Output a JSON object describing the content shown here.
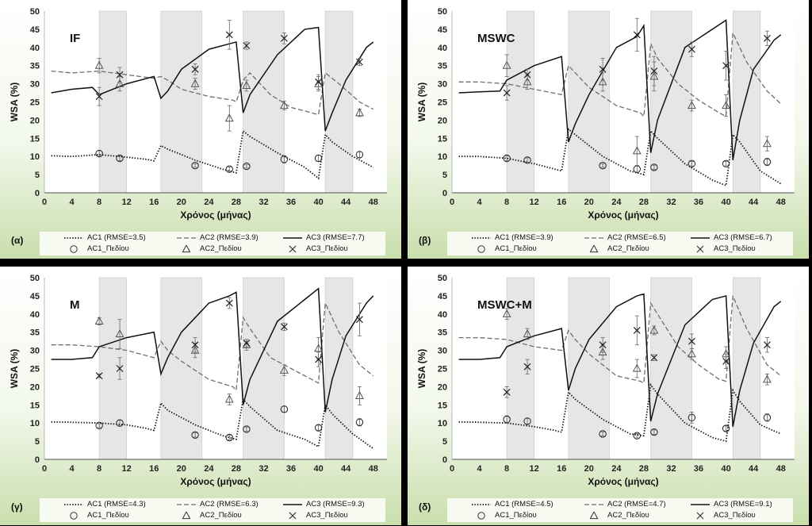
{
  "axis": {
    "ylabel": "WSA (%)",
    "xlabel": "Χρόνος (μήνας)",
    "xticks": [
      0,
      4,
      8,
      12,
      16,
      20,
      24,
      28,
      32,
      36,
      40,
      44,
      48
    ],
    "yticks": [
      0,
      5,
      10,
      15,
      20,
      25,
      30,
      35,
      40,
      45,
      50
    ]
  },
  "colors": {
    "ac1": "#111111",
    "ac2": "#6e6e6e",
    "ac3": "#111111",
    "shade": "#e6e6e6"
  },
  "chart_data": [
    {
      "type": "line",
      "panel_label": "(α)",
      "title": "IF",
      "xlim": [
        0,
        50
      ],
      "ylim": [
        0,
        50
      ],
      "shaded_x": [
        [
          8,
          12
        ],
        [
          17,
          23
        ],
        [
          29,
          35
        ],
        [
          41,
          45
        ]
      ],
      "legend": [
        "AC1 (RMSE=3.5)",
        "AC2 (RMSE=3.9)",
        "AC3 (RMSE=7.7)",
        "AC1_Πεδίου",
        "AC2_Πεδίου",
        "AC3_Πεδίου"
      ],
      "series": [
        {
          "name": "AC1 (RMSE=3.5)",
          "style": "dotted",
          "x": [
            1,
            4,
            8,
            12,
            15,
            16,
            17,
            18,
            22,
            26,
            28,
            29,
            30,
            34,
            38,
            40,
            41,
            42,
            45,
            48
          ],
          "y": [
            10.2,
            10,
            10.5,
            9.8,
            9.2,
            8.8,
            13,
            12,
            9,
            6.5,
            5.5,
            17,
            15.5,
            11,
            7,
            4,
            16,
            14,
            10,
            7
          ]
        },
        {
          "name": "AC2 (RMSE=3.9)",
          "style": "dashed",
          "x": [
            1,
            4,
            8,
            12,
            16,
            17,
            18,
            20,
            24,
            27.5,
            28,
            29,
            30,
            33,
            36,
            39,
            40,
            41,
            43,
            46,
            48
          ],
          "y": [
            33.5,
            33,
            33.5,
            32.5,
            31.5,
            32,
            31,
            28.5,
            26.5,
            25.5,
            25,
            31,
            33,
            27,
            23.5,
            22,
            21.5,
            33,
            30,
            25,
            23
          ]
        },
        {
          "name": "AC3 (RMSE=7.7)",
          "style": "solid",
          "x": [
            1,
            4,
            7,
            8,
            12,
            16,
            17,
            18,
            20,
            24,
            27,
            28,
            29,
            30,
            34,
            38,
            40,
            41,
            42,
            44,
            47,
            48
          ],
          "y": [
            27.5,
            28.5,
            29,
            27,
            30,
            32,
            26,
            28,
            34,
            39.5,
            41,
            41.5,
            22,
            27,
            38,
            45,
            45.5,
            17,
            22,
            31,
            40,
            41.5
          ]
        }
      ],
      "observed": [
        {
          "name": "AC1_Πεδίου",
          "marker": "circle",
          "x": [
            8,
            11,
            22,
            27,
            29.5,
            35,
            40,
            46
          ],
          "y": [
            10.8,
            9.5,
            7.5,
            6.5,
            7.3,
            9.2,
            9.5,
            10.5
          ],
          "err": [
            0.8,
            0.7,
            0.5,
            0.6,
            0.5,
            1,
            0.8,
            0.8
          ]
        },
        {
          "name": "AC2_Πεδίου",
          "marker": "triangle",
          "x": [
            8,
            11,
            22,
            27,
            29.5,
            35,
            40,
            46
          ],
          "y": [
            35,
            30,
            30,
            20.5,
            29.5,
            24,
            30,
            22
          ],
          "err": [
            2,
            2,
            1.5,
            3.5,
            1.5,
            1.2,
            2,
            1
          ]
        },
        {
          "name": "AC3_Πεδίου",
          "marker": "cross",
          "x": [
            8,
            11,
            22,
            27,
            29.5,
            35,
            40,
            46
          ],
          "y": [
            26.5,
            32.5,
            34,
            43.5,
            40.5,
            42.5,
            30.5,
            36
          ],
          "err": [
            2.5,
            2,
            1.5,
            4,
            1,
            1.5,
            2,
            1
          ]
        }
      ]
    },
    {
      "type": "line",
      "panel_label": "(β)",
      "title": "MSWC",
      "xlim": [
        0,
        50
      ],
      "ylim": [
        0,
        50
      ],
      "shaded_x": [
        [
          8,
          12
        ],
        [
          17,
          23
        ],
        [
          29,
          35
        ],
        [
          41,
          45
        ]
      ],
      "legend": [
        "AC1 (RMSE=3.9)",
        "AC2 (RMSE=6.5)",
        "AC3 (RMSE=6.7)",
        "AC1_Πεδίου",
        "AC2_Πεδίου",
        "AC3_Πεδίου"
      ],
      "series": [
        {
          "name": "AC1 (RMSE=3.9)",
          "style": "dotted",
          "x": [
            1,
            4,
            8,
            12,
            15,
            16,
            17,
            18,
            22,
            26,
            28,
            29,
            30,
            34,
            38,
            40,
            41,
            42,
            45,
            48
          ],
          "y": [
            10,
            10,
            9.5,
            8,
            6.5,
            6,
            17.5,
            16,
            10,
            6,
            5,
            17,
            15,
            8,
            3.5,
            2,
            16,
            14,
            6,
            2.5
          ]
        },
        {
          "name": "AC2 (RMSE=6.5)",
          "style": "dashed",
          "x": [
            1,
            4,
            8,
            12,
            16,
            17,
            18,
            20,
            24,
            27.5,
            28,
            29,
            30,
            33,
            36,
            39,
            40,
            41,
            43,
            46,
            48
          ],
          "y": [
            30.5,
            30.5,
            30,
            28.5,
            27,
            35,
            33,
            29,
            24,
            22,
            21,
            41,
            37,
            30,
            25.5,
            22,
            21,
            44,
            36,
            28,
            24.5
          ]
        },
        {
          "name": "AC3 (RMSE=6.7)",
          "style": "solid",
          "x": [
            1,
            4,
            7,
            8,
            12,
            16,
            17,
            18,
            20,
            24,
            27,
            28,
            29,
            30,
            34,
            38,
            40,
            41,
            42,
            44,
            47,
            48
          ],
          "y": [
            27.5,
            27.8,
            28,
            31,
            35,
            37.5,
            14,
            19,
            27,
            40,
            43,
            46,
            11,
            20,
            40,
            45,
            47.5,
            9,
            20,
            34,
            42,
            43.5
          ]
        }
      ],
      "observed": [
        {
          "name": "AC1_Πεδίου",
          "marker": "circle",
          "x": [
            8,
            11,
            22,
            27,
            29.5,
            35,
            40,
            46
          ],
          "y": [
            9.5,
            9,
            7.5,
            6.5,
            7,
            8,
            8,
            8.5
          ],
          "err": [
            0.7,
            0.6,
            0.5,
            1,
            0.6,
            0.6,
            0.6,
            1
          ]
        },
        {
          "name": "AC2_Πεδίου",
          "marker": "triangle",
          "x": [
            8,
            11,
            22,
            27,
            29.5,
            35,
            40,
            46
          ],
          "y": [
            35,
            30.5,
            30.5,
            11.5,
            32,
            24,
            24,
            13.5
          ],
          "err": [
            3,
            2,
            2.5,
            4,
            4,
            1.5,
            3,
            2
          ]
        },
        {
          "name": "AC3_Πεδίου",
          "marker": "cross",
          "x": [
            8,
            11,
            22,
            27,
            29.5,
            35,
            40,
            46
          ],
          "y": [
            27.5,
            32.5,
            34,
            43.5,
            33.5,
            39.5,
            35,
            42.5
          ],
          "err": [
            2,
            1.5,
            3,
            4.5,
            4,
            2,
            4,
            2
          ]
        }
      ]
    },
    {
      "type": "line",
      "panel_label": "(γ)",
      "title": "M",
      "xlim": [
        0,
        50
      ],
      "ylim": [
        0,
        50
      ],
      "shaded_x": [
        [
          8,
          12
        ],
        [
          17,
          23
        ],
        [
          29,
          35
        ],
        [
          41,
          45
        ]
      ],
      "legend": [
        "AC1 (RMSE=4.3)",
        "AC2 (RMSE=6.3)",
        "AC3 (RMSE=9.3)",
        "AC1_Πεδίου",
        "AC2_Πεδίου",
        "AC3_Πεδίου"
      ],
      "series": [
        {
          "name": "AC1 (RMSE=4.3)",
          "style": "dotted",
          "x": [
            1,
            4,
            8,
            12,
            15,
            16,
            17,
            18,
            22,
            26,
            28,
            29,
            30,
            34,
            38,
            40,
            41,
            42,
            45,
            48
          ],
          "y": [
            10.3,
            10.2,
            10,
            9.5,
            8.5,
            8,
            15.5,
            13.5,
            9.5,
            6.5,
            5.5,
            16.5,
            14.5,
            8,
            5.5,
            3.5,
            15,
            12.5,
            7,
            3
          ]
        },
        {
          "name": "AC2 (RMSE=6.3)",
          "style": "dashed",
          "x": [
            1,
            4,
            8,
            12,
            16,
            17,
            18,
            20,
            24,
            27.5,
            28,
            29,
            30,
            33,
            36,
            39,
            40,
            41,
            43,
            46,
            48
          ],
          "y": [
            31.5,
            31.5,
            31,
            30,
            28,
            32.5,
            30,
            27,
            22,
            20,
            19,
            39,
            36,
            28,
            25,
            22,
            21,
            43,
            35,
            26,
            23
          ]
        },
        {
          "name": "AC3 (RMSE=9.3)",
          "style": "solid",
          "x": [
            1,
            4,
            7,
            8,
            12,
            16,
            17,
            18,
            20,
            24,
            27,
            28,
            29,
            30,
            34,
            38,
            40,
            41,
            42,
            44,
            47,
            48
          ],
          "y": [
            27.5,
            27.5,
            28,
            31,
            33.5,
            35,
            23.5,
            28,
            35,
            43,
            45,
            46,
            15,
            22,
            38,
            44,
            47,
            13,
            22,
            34,
            43,
            45
          ]
        }
      ],
      "observed": [
        {
          "name": "AC1_Πεδίου",
          "marker": "circle",
          "x": [
            8,
            11,
            22,
            27,
            29.5,
            35,
            40,
            46
          ],
          "y": [
            9.3,
            10,
            6.7,
            6,
            8.3,
            13.8,
            8.7,
            10.2
          ],
          "err": [
            0.5,
            0.8,
            0.6,
            0.6,
            0.6,
            0.8,
            0.7,
            1
          ]
        },
        {
          "name": "AC2_Πεδίου",
          "marker": "triangle",
          "x": [
            8,
            11,
            22,
            27,
            29.5,
            35,
            40,
            46
          ],
          "y": [
            38,
            34.5,
            30,
            16.5,
            31.5,
            24.5,
            30.5,
            17.5
          ],
          "err": [
            1,
            4,
            2,
            1.5,
            1.5,
            1.5,
            3,
            2.5
          ]
        },
        {
          "name": "AC3_Πεδίου",
          "marker": "cross",
          "x": [
            8,
            11,
            22,
            27,
            29.5,
            35,
            40,
            46
          ],
          "y": [
            23,
            25,
            31.5,
            43,
            32,
            36.5,
            27.5,
            38.5
          ],
          "err": [
            0.5,
            3,
            2,
            1.5,
            1,
            1,
            2,
            4.5
          ]
        }
      ]
    },
    {
      "type": "line",
      "panel_label": "(δ)",
      "title": "MSWC+M",
      "xlim": [
        0,
        50
      ],
      "ylim": [
        0,
        50
      ],
      "shaded_x": [
        [
          8,
          12
        ],
        [
          17,
          23
        ],
        [
          29,
          35
        ],
        [
          41,
          45
        ]
      ],
      "legend": [
        "AC1 (RMSE=4.5)",
        "AC2 (RMSE=4.7)",
        "AC3 (RMSE=9.1)",
        "AC1_Πεδίου",
        "AC2_Πεδίου",
        "AC3_Πεδίου"
      ],
      "series": [
        {
          "name": "AC1 (RMSE=4.5)",
          "style": "dotted",
          "x": [
            1,
            4,
            8,
            12,
            15,
            16,
            17,
            18,
            22,
            26,
            28,
            29,
            30,
            34,
            38,
            40,
            41,
            42,
            45,
            48
          ],
          "y": [
            10.3,
            10.2,
            10,
            9,
            8,
            7.5,
            18.5,
            16.5,
            11,
            7,
            6.5,
            20.5,
            18,
            10,
            6,
            5,
            19,
            16,
            9.5,
            7
          ]
        },
        {
          "name": "AC2 (RMSE=4.7)",
          "style": "dashed",
          "x": [
            1,
            4,
            8,
            12,
            16,
            17,
            18,
            20,
            24,
            27.5,
            28,
            29,
            30,
            33,
            36,
            39,
            40,
            41,
            43,
            46,
            48
          ],
          "y": [
            33.5,
            33.5,
            33,
            31,
            30,
            35.5,
            33,
            29,
            23,
            21.5,
            21,
            43,
            40,
            31,
            26,
            22,
            21.5,
            45,
            36,
            26,
            23
          ]
        },
        {
          "name": "AC3 (RMSE=9.1)",
          "style": "solid",
          "x": [
            1,
            4,
            7,
            8,
            12,
            16,
            17,
            18,
            20,
            24,
            27,
            28,
            29,
            30,
            34,
            38,
            40,
            41,
            42,
            44,
            47,
            48
          ],
          "y": [
            27.5,
            27.5,
            28,
            31,
            34,
            36,
            19,
            25,
            33,
            42,
            45,
            45.5,
            10.5,
            18,
            37,
            44,
            45,
            9,
            19,
            32,
            42,
            43.5
          ]
        }
      ],
      "observed": [
        {
          "name": "AC1_Πεδίου",
          "marker": "circle",
          "x": [
            8,
            11,
            22,
            27,
            29.5,
            35,
            40,
            46
          ],
          "y": [
            11,
            10.5,
            7,
            6.5,
            7.5,
            11.5,
            8.5,
            11.5
          ],
          "err": [
            1,
            0.8,
            0.6,
            0.6,
            0.6,
            1.5,
            0.7,
            1
          ]
        },
        {
          "name": "AC2_Πεδίου",
          "marker": "triangle",
          "x": [
            8,
            11,
            22,
            27,
            29.5,
            35,
            40,
            46
          ],
          "y": [
            40,
            34.5,
            29.5,
            25,
            35.5,
            29,
            29,
            22
          ],
          "err": [
            1.5,
            1.5,
            2,
            2.5,
            1.2,
            1.5,
            2,
            1.5
          ]
        },
        {
          "name": "AC3_Πεδίου",
          "marker": "cross",
          "x": [
            8,
            11,
            22,
            27,
            29.5,
            35,
            40,
            46
          ],
          "y": [
            18.5,
            25.5,
            31.5,
            35.5,
            28,
            32.5,
            27,
            31.5
          ],
          "err": [
            1.5,
            2,
            2,
            4,
            0.8,
            2,
            2,
            2
          ]
        }
      ]
    }
  ]
}
